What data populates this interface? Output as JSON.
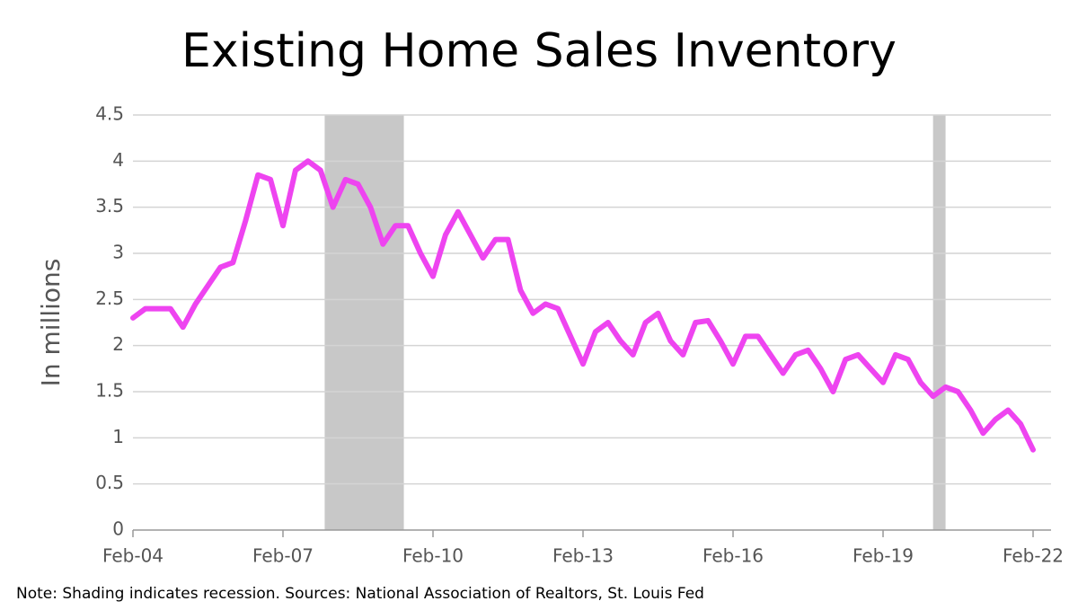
{
  "chart_data": {
    "type": "line",
    "title": "Existing Home Sales Inventory",
    "y_label": "In millions",
    "note": "Note: Shading indicates recession. Sources: National Association of Realtors, St. Louis Fed",
    "x": [
      2004.083,
      2004.333,
      2004.583,
      2004.833,
      2005.083,
      2005.333,
      2005.583,
      2005.833,
      2006.083,
      2006.333,
      2006.583,
      2006.833,
      2007.083,
      2007.333,
      2007.583,
      2007.833,
      2008.083,
      2008.333,
      2008.583,
      2008.833,
      2009.083,
      2009.333,
      2009.583,
      2009.833,
      2010.083,
      2010.333,
      2010.583,
      2010.833,
      2011.083,
      2011.333,
      2011.583,
      2011.833,
      2012.083,
      2012.333,
      2012.583,
      2012.833,
      2013.083,
      2013.333,
      2013.583,
      2013.833,
      2014.083,
      2014.333,
      2014.583,
      2014.833,
      2015.083,
      2015.333,
      2015.583,
      2015.833,
      2016.083,
      2016.333,
      2016.583,
      2016.833,
      2017.083,
      2017.333,
      2017.583,
      2017.833,
      2018.083,
      2018.333,
      2018.583,
      2018.833,
      2019.083,
      2019.333,
      2019.583,
      2019.833,
      2020.083,
      2020.333,
      2020.583,
      2020.833,
      2021.083,
      2021.333,
      2021.583,
      2021.833,
      2022.083
    ],
    "series": [
      {
        "name": "Inventory",
        "color": "#ee44f0",
        "values": [
          2.3,
          2.4,
          2.4,
          2.4,
          2.2,
          2.45,
          2.65,
          2.85,
          2.9,
          3.35,
          3.85,
          3.8,
          3.3,
          3.9,
          4.0,
          3.9,
          3.5,
          3.8,
          3.75,
          3.5,
          3.1,
          3.3,
          3.3,
          3.0,
          2.75,
          3.2,
          3.45,
          3.2,
          2.95,
          3.15,
          3.15,
          2.6,
          2.35,
          2.45,
          2.4,
          2.1,
          1.8,
          2.15,
          2.25,
          2.05,
          1.9,
          2.25,
          2.35,
          2.05,
          1.9,
          2.25,
          2.27,
          2.05,
          1.8,
          2.1,
          2.1,
          1.9,
          1.7,
          1.9,
          1.95,
          1.75,
          1.5,
          1.85,
          1.9,
          1.75,
          1.6,
          1.9,
          1.85,
          1.6,
          1.45,
          1.55,
          1.5,
          1.3,
          1.05,
          1.2,
          1.3,
          1.15,
          0.87
        ]
      }
    ],
    "recessions": [
      [
        2007.917,
        2009.5
      ],
      [
        2020.083,
        2020.333
      ]
    ],
    "shading_color": "#c8c8c8",
    "xlim": [
      2004.083,
      2022.083
    ],
    "xticks": [
      {
        "value": 2004.083,
        "label": "Feb-04"
      },
      {
        "value": 2007.083,
        "label": "Feb-07"
      },
      {
        "value": 2010.083,
        "label": "Feb-10"
      },
      {
        "value": 2013.083,
        "label": "Feb-13"
      },
      {
        "value": 2016.083,
        "label": "Feb-16"
      },
      {
        "value": 2019.083,
        "label": "Feb-19"
      },
      {
        "value": 2022.083,
        "label": "Feb-22"
      }
    ],
    "ylim": [
      0,
      4.5
    ],
    "yticks": [
      0,
      0.5,
      1,
      1.5,
      2,
      2.5,
      3,
      3.5,
      4,
      4.5
    ],
    "grid": true
  }
}
